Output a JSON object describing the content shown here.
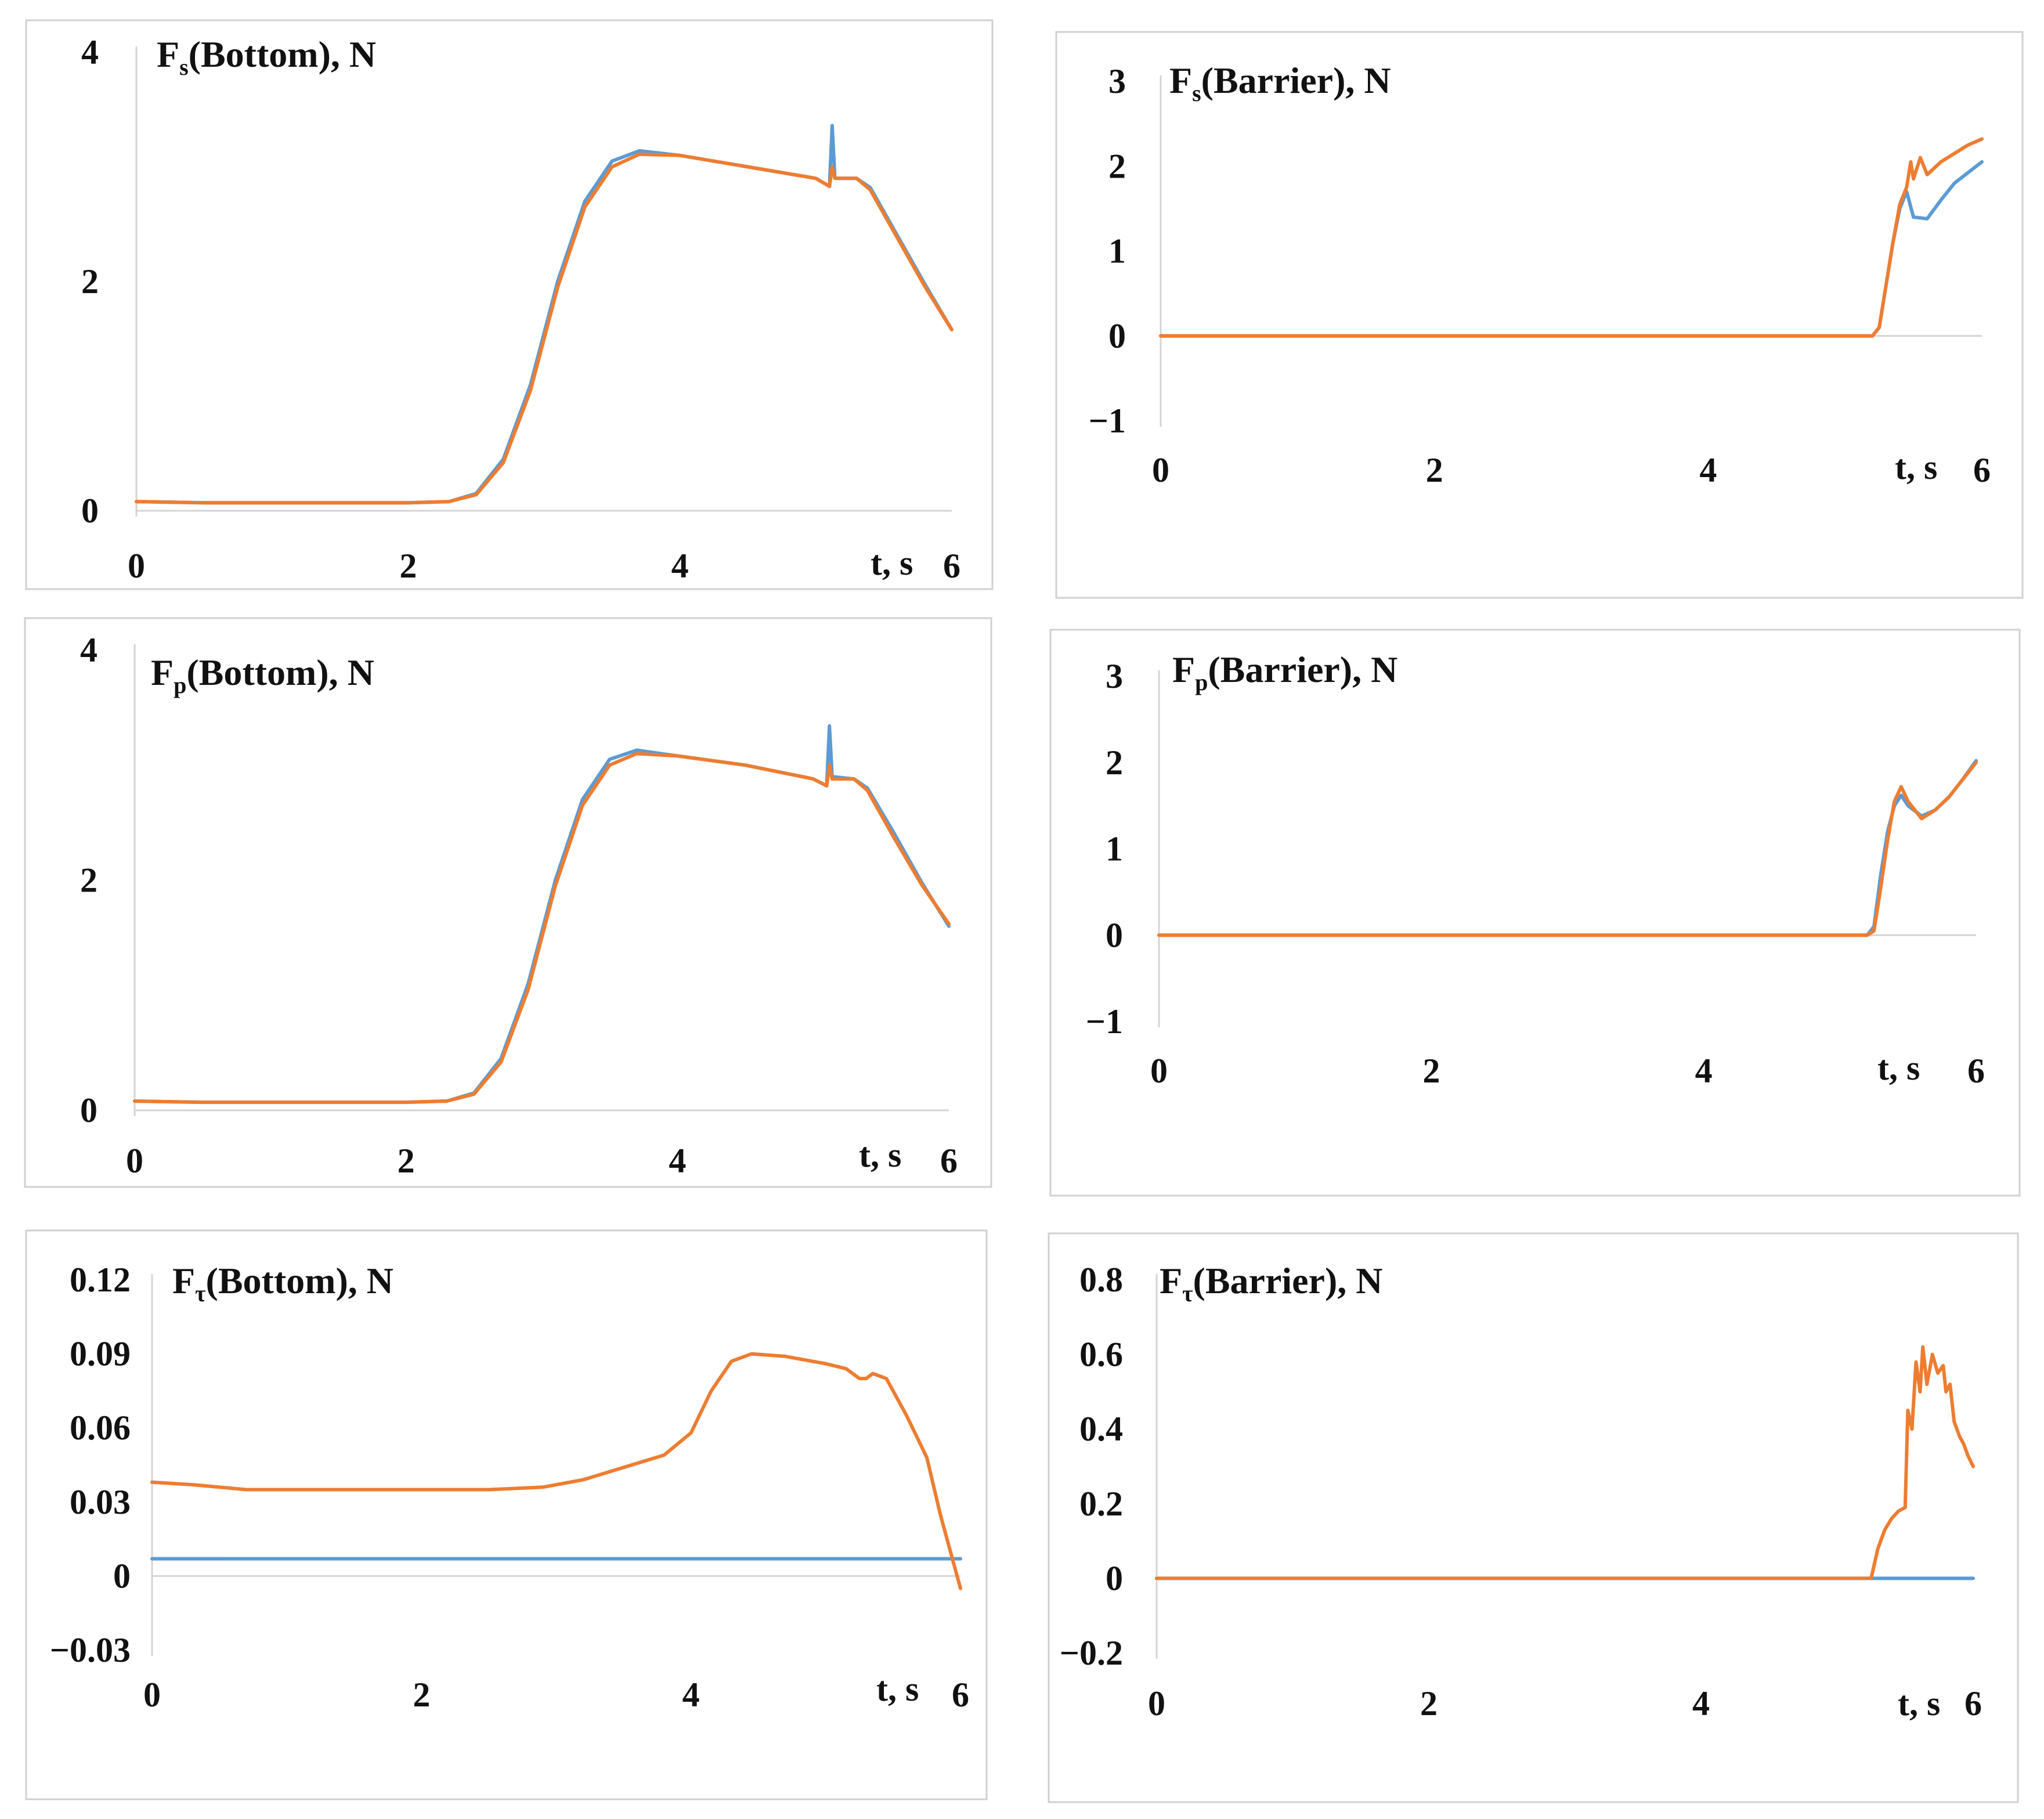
{
  "colors": {
    "series_1": "#5B9BD5",
    "series_2": "#ED7D31"
  },
  "chart_data": [
    {
      "type": "line",
      "title": {
        "base": "F",
        "sub": "s",
        "rest": "(Bottom), N"
      },
      "xlabel": "t, s",
      "xlim": [
        0,
        6
      ],
      "ylim": [
        0,
        4
      ],
      "xticks": [
        0,
        2,
        4,
        6
      ],
      "yticks": [
        0,
        2,
        4
      ],
      "xtick_labels": [
        "0",
        "2",
        "4",
        "6"
      ],
      "ytick_labels": [
        "0",
        "2",
        "4"
      ],
      "series": [
        {
          "name": "series_1",
          "color": "#5B9BD5",
          "points": [
            [
              0,
              0.08
            ],
            [
              0.5,
              0.07
            ],
            [
              2.0,
              0.07
            ],
            [
              2.3,
              0.08
            ],
            [
              2.5,
              0.15
            ],
            [
              2.7,
              0.45
            ],
            [
              2.9,
              1.1
            ],
            [
              3.1,
              2.0
            ],
            [
              3.3,
              2.7
            ],
            [
              3.5,
              3.05
            ],
            [
              3.7,
              3.14
            ],
            [
              4.0,
              3.1
            ],
            [
              4.5,
              3.0
            ],
            [
              5.0,
              2.9
            ],
            [
              5.1,
              2.83
            ],
            [
              5.12,
              3.36
            ],
            [
              5.14,
              2.9
            ],
            [
              5.3,
              2.9
            ],
            [
              5.4,
              2.82
            ],
            [
              5.6,
              2.4
            ],
            [
              5.8,
              1.98
            ],
            [
              6.0,
              1.58
            ]
          ]
        },
        {
          "name": "series_2",
          "color": "#ED7D31",
          "points": [
            [
              0,
              0.08
            ],
            [
              0.5,
              0.07
            ],
            [
              2.0,
              0.07
            ],
            [
              2.3,
              0.08
            ],
            [
              2.5,
              0.14
            ],
            [
              2.7,
              0.42
            ],
            [
              2.9,
              1.05
            ],
            [
              3.1,
              1.95
            ],
            [
              3.3,
              2.65
            ],
            [
              3.5,
              3.0
            ],
            [
              3.7,
              3.11
            ],
            [
              4.0,
              3.1
            ],
            [
              4.5,
              3.0
            ],
            [
              5.0,
              2.9
            ],
            [
              5.1,
              2.83
            ],
            [
              5.12,
              3.0
            ],
            [
              5.14,
              2.9
            ],
            [
              5.3,
              2.9
            ],
            [
              5.4,
              2.8
            ],
            [
              5.6,
              2.38
            ],
            [
              5.8,
              1.96
            ],
            [
              6.0,
              1.58
            ]
          ]
        }
      ]
    },
    {
      "type": "line",
      "title": {
        "base": "F",
        "sub": "s",
        "rest": "(Barrier), N"
      },
      "xlabel": "t, s",
      "xlim": [
        0,
        6
      ],
      "ylim": [
        -1,
        3
      ],
      "xticks": [
        0,
        2,
        4,
        6
      ],
      "yticks": [
        -1,
        0,
        1,
        2,
        3
      ],
      "xtick_labels": [
        "0",
        "2",
        "4",
        "6"
      ],
      "ytick_labels": [
        "−1",
        "0",
        "1",
        "2",
        "3"
      ],
      "series": [
        {
          "name": "series_1",
          "color": "#5B9BD5",
          "points": [
            [
              0,
              0
            ],
            [
              5.2,
              0
            ],
            [
              5.25,
              0.1
            ],
            [
              5.3,
              0.6
            ],
            [
              5.35,
              1.1
            ],
            [
              5.4,
              1.5
            ],
            [
              5.45,
              1.7
            ],
            [
              5.5,
              1.4
            ],
            [
              5.6,
              1.38
            ],
            [
              5.7,
              1.6
            ],
            [
              5.8,
              1.8
            ],
            [
              6.0,
              2.05
            ]
          ]
        },
        {
          "name": "series_2",
          "color": "#ED7D31",
          "points": [
            [
              0,
              0
            ],
            [
              5.2,
              0
            ],
            [
              5.25,
              0.1
            ],
            [
              5.3,
              0.6
            ],
            [
              5.35,
              1.1
            ],
            [
              5.4,
              1.55
            ],
            [
              5.45,
              1.75
            ],
            [
              5.48,
              2.05
            ],
            [
              5.5,
              1.85
            ],
            [
              5.55,
              2.1
            ],
            [
              5.6,
              1.9
            ],
            [
              5.7,
              2.05
            ],
            [
              5.8,
              2.15
            ],
            [
              5.9,
              2.25
            ],
            [
              6.0,
              2.32
            ]
          ]
        }
      ]
    },
    {
      "type": "line",
      "title": {
        "base": "F",
        "sub": "p",
        "rest": "(Bottom), N"
      },
      "xlabel": "t, s",
      "xlim": [
        0,
        6
      ],
      "ylim": [
        0,
        4
      ],
      "xticks": [
        0,
        2,
        4,
        6
      ],
      "yticks": [
        0,
        2,
        4
      ],
      "xtick_labels": [
        "0",
        "2",
        "4",
        "6"
      ],
      "ytick_labels": [
        "0",
        "2",
        "4"
      ],
      "series": [
        {
          "name": "series_1",
          "color": "#5B9BD5",
          "points": [
            [
              0,
              0.08
            ],
            [
              0.5,
              0.07
            ],
            [
              2.0,
              0.07
            ],
            [
              2.3,
              0.08
            ],
            [
              2.5,
              0.15
            ],
            [
              2.7,
              0.45
            ],
            [
              2.9,
              1.1
            ],
            [
              3.1,
              2.0
            ],
            [
              3.3,
              2.7
            ],
            [
              3.5,
              3.05
            ],
            [
              3.7,
              3.13
            ],
            [
              4.0,
              3.08
            ],
            [
              4.5,
              3.0
            ],
            [
              5.0,
              2.88
            ],
            [
              5.1,
              2.82
            ],
            [
              5.12,
              3.34
            ],
            [
              5.14,
              2.9
            ],
            [
              5.3,
              2.88
            ],
            [
              5.4,
              2.8
            ],
            [
              5.6,
              2.4
            ],
            [
              5.8,
              1.98
            ],
            [
              6.0,
              1.6
            ]
          ]
        },
        {
          "name": "series_2",
          "color": "#ED7D31",
          "points": [
            [
              0,
              0.08
            ],
            [
              0.5,
              0.07
            ],
            [
              2.0,
              0.07
            ],
            [
              2.3,
              0.08
            ],
            [
              2.5,
              0.14
            ],
            [
              2.7,
              0.42
            ],
            [
              2.9,
              1.05
            ],
            [
              3.1,
              1.95
            ],
            [
              3.3,
              2.65
            ],
            [
              3.5,
              3.0
            ],
            [
              3.7,
              3.1
            ],
            [
              4.0,
              3.08
            ],
            [
              4.5,
              3.0
            ],
            [
              5.0,
              2.88
            ],
            [
              5.1,
              2.82
            ],
            [
              5.12,
              3.0
            ],
            [
              5.14,
              2.88
            ],
            [
              5.3,
              2.88
            ],
            [
              5.4,
              2.78
            ],
            [
              5.6,
              2.36
            ],
            [
              5.8,
              1.96
            ],
            [
              6.0,
              1.62
            ]
          ]
        }
      ]
    },
    {
      "type": "line",
      "title": {
        "base": "F",
        "sub": "p",
        "rest": "(Barrier), N"
      },
      "xlabel": "t, s",
      "xlim": [
        0,
        6
      ],
      "ylim": [
        -1,
        3
      ],
      "xticks": [
        0,
        2,
        4,
        6
      ],
      "yticks": [
        -1,
        0,
        1,
        2,
        3
      ],
      "xtick_labels": [
        "0",
        "2",
        "4",
        "6"
      ],
      "ytick_labels": [
        "−1",
        "0",
        "1",
        "2",
        "3"
      ],
      "series": [
        {
          "name": "series_1",
          "color": "#5B9BD5",
          "points": [
            [
              0,
              0
            ],
            [
              5.2,
              0
            ],
            [
              5.25,
              0.1
            ],
            [
              5.3,
              0.7
            ],
            [
              5.35,
              1.2
            ],
            [
              5.4,
              1.5
            ],
            [
              5.45,
              1.62
            ],
            [
              5.5,
              1.5
            ],
            [
              5.6,
              1.38
            ],
            [
              5.7,
              1.45
            ],
            [
              5.8,
              1.6
            ],
            [
              5.9,
              1.8
            ],
            [
              6.0,
              2.02
            ]
          ]
        },
        {
          "name": "series_2",
          "color": "#ED7D31",
          "points": [
            [
              0,
              0
            ],
            [
              5.2,
              0
            ],
            [
              5.25,
              0.05
            ],
            [
              5.3,
              0.55
            ],
            [
              5.35,
              1.1
            ],
            [
              5.4,
              1.55
            ],
            [
              5.45,
              1.72
            ],
            [
              5.5,
              1.55
            ],
            [
              5.6,
              1.35
            ],
            [
              5.7,
              1.45
            ],
            [
              5.8,
              1.6
            ],
            [
              5.9,
              1.8
            ],
            [
              6.0,
              2.0
            ]
          ]
        }
      ]
    },
    {
      "type": "line",
      "title": {
        "base": "F",
        "sub": "τ",
        "rest": "(Bottom), N"
      },
      "xlabel": "t, s",
      "xlim": [
        0,
        6
      ],
      "ylim": [
        -0.03,
        0.12
      ],
      "xticks": [
        0,
        2,
        4,
        6
      ],
      "yticks": [
        -0.03,
        0,
        0.03,
        0.06,
        0.09,
        0.12
      ],
      "xtick_labels": [
        "0",
        "2",
        "4",
        "6"
      ],
      "ytick_labels": [
        "−0.03",
        "0",
        "0.03",
        "0.06",
        "0.09",
        "0.12"
      ],
      "series": [
        {
          "name": "series_1",
          "color": "#5B9BD5",
          "points": [
            [
              0,
              0.007
            ],
            [
              6.0,
              0.007
            ]
          ]
        },
        {
          "name": "series_2",
          "color": "#ED7D31",
          "points": [
            [
              0,
              0.038
            ],
            [
              0.3,
              0.037
            ],
            [
              0.7,
              0.035
            ],
            [
              1.5,
              0.035
            ],
            [
              2.5,
              0.035
            ],
            [
              2.9,
              0.036
            ],
            [
              3.2,
              0.039
            ],
            [
              3.5,
              0.044
            ],
            [
              3.8,
              0.049
            ],
            [
              4.0,
              0.058
            ],
            [
              4.15,
              0.075
            ],
            [
              4.3,
              0.087
            ],
            [
              4.45,
              0.09
            ],
            [
              4.7,
              0.089
            ],
            [
              5.0,
              0.086
            ],
            [
              5.15,
              0.084
            ],
            [
              5.25,
              0.08
            ],
            [
              5.3,
              0.08
            ],
            [
              5.35,
              0.082
            ],
            [
              5.45,
              0.08
            ],
            [
              5.6,
              0.065
            ],
            [
              5.75,
              0.048
            ],
            [
              5.85,
              0.025
            ],
            [
              5.95,
              0.005
            ],
            [
              6.0,
              -0.005
            ]
          ]
        }
      ]
    },
    {
      "type": "line",
      "title": {
        "base": "F",
        "sub": "τ",
        "rest": "(Barrier), N"
      },
      "xlabel": "t, s",
      "xlim": [
        0,
        6
      ],
      "ylim": [
        -0.2,
        0.8
      ],
      "xticks": [
        0,
        2,
        4,
        6
      ],
      "yticks": [
        -0.2,
        0,
        0.2,
        0.4,
        0.6,
        0.8
      ],
      "xtick_labels": [
        "0",
        "2",
        "4",
        "6"
      ],
      "ytick_labels": [
        "−0.2",
        "0",
        "0.2",
        "0.4",
        "0.6",
        "0.8"
      ],
      "series": [
        {
          "name": "series_1",
          "color": "#5B9BD5",
          "points": [
            [
              0,
              0
            ],
            [
              6.0,
              0
            ]
          ]
        },
        {
          "name": "series_2",
          "color": "#ED7D31",
          "points": [
            [
              0,
              0
            ],
            [
              5.25,
              0
            ],
            [
              5.3,
              0.08
            ],
            [
              5.35,
              0.13
            ],
            [
              5.4,
              0.16
            ],
            [
              5.45,
              0.18
            ],
            [
              5.5,
              0.19
            ],
            [
              5.52,
              0.45
            ],
            [
              5.55,
              0.4
            ],
            [
              5.58,
              0.58
            ],
            [
              5.61,
              0.5
            ],
            [
              5.63,
              0.62
            ],
            [
              5.66,
              0.52
            ],
            [
              5.7,
              0.6
            ],
            [
              5.74,
              0.55
            ],
            [
              5.78,
              0.57
            ],
            [
              5.8,
              0.5
            ],
            [
              5.83,
              0.52
            ],
            [
              5.86,
              0.42
            ],
            [
              5.9,
              0.38
            ],
            [
              5.93,
              0.36
            ],
            [
              5.96,
              0.33
            ],
            [
              6.0,
              0.3
            ]
          ]
        }
      ]
    }
  ]
}
